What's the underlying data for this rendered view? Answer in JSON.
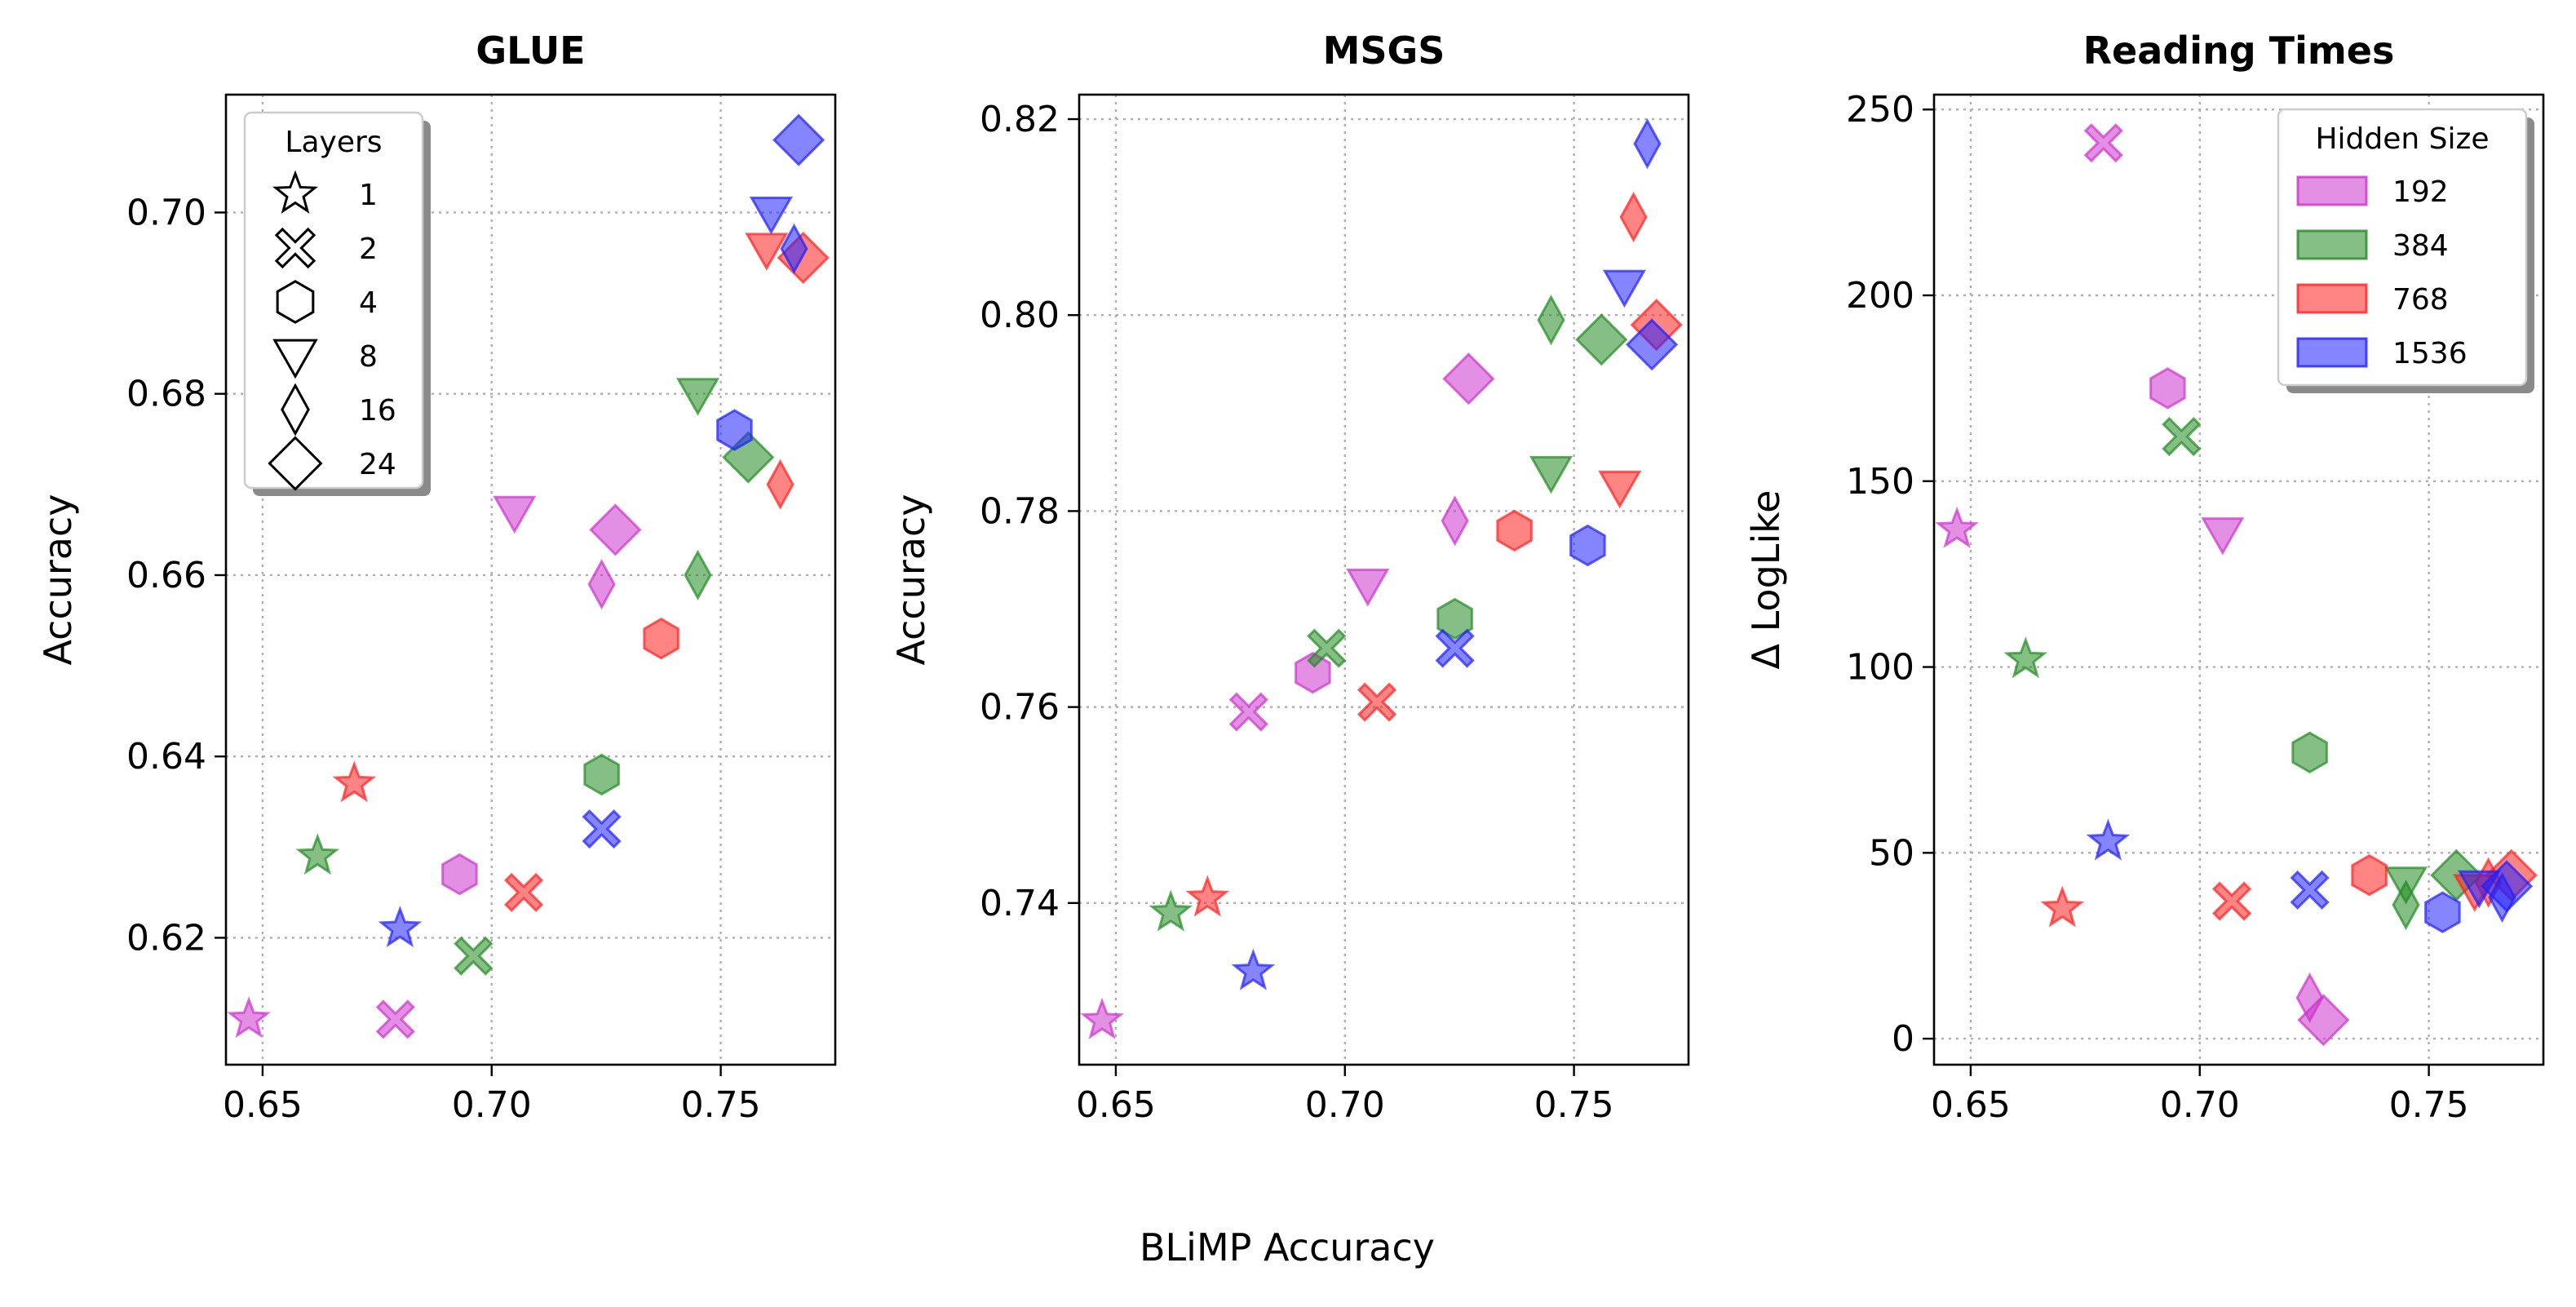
{
  "figure": {
    "shared_xlabel": "BLiMP Accuracy"
  },
  "legends": {
    "layers": {
      "title": "Layers",
      "entries": [
        {
          "label": "1",
          "marker": "star"
        },
        {
          "label": "2",
          "marker": "x"
        },
        {
          "label": "4",
          "marker": "hexagon"
        },
        {
          "label": "8",
          "marker": "triangle-down"
        },
        {
          "label": "16",
          "marker": "thin-diamond"
        },
        {
          "label": "24",
          "marker": "diamond"
        }
      ]
    },
    "hidden_size": {
      "title": "Hidden Size",
      "entries": [
        {
          "label": "192",
          "color": "#CC33CC"
        },
        {
          "label": "384",
          "color": "#228B22"
        },
        {
          "label": "768",
          "color": "#FF2020"
        },
        {
          "label": "1536",
          "color": "#2020FF"
        }
      ]
    }
  },
  "chart_data": [
    {
      "type": "scatter",
      "title": "GLUE",
      "xlabel": "",
      "ylabel": "Accuracy",
      "xlim": [
        0.642,
        0.775
      ],
      "ylim": [
        0.606,
        0.713
      ],
      "xticks": [
        "0.65",
        "0.70",
        "0.75"
      ],
      "yticks": [
        "0.62",
        "0.64",
        "0.66",
        "0.68",
        "0.70"
      ],
      "grid": true,
      "legend": "layers, top-left",
      "points": [
        {
          "x": 0.647,
          "y": 0.611,
          "layers": 1,
          "hidden": 192
        },
        {
          "x": 0.679,
          "y": 0.611,
          "layers": 2,
          "hidden": 192
        },
        {
          "x": 0.693,
          "y": 0.627,
          "layers": 4,
          "hidden": 192
        },
        {
          "x": 0.705,
          "y": 0.667,
          "layers": 8,
          "hidden": 192
        },
        {
          "x": 0.724,
          "y": 0.659,
          "layers": 16,
          "hidden": 192
        },
        {
          "x": 0.727,
          "y": 0.665,
          "layers": 24,
          "hidden": 192
        },
        {
          "x": 0.662,
          "y": 0.629,
          "layers": 1,
          "hidden": 384
        },
        {
          "x": 0.696,
          "y": 0.618,
          "layers": 2,
          "hidden": 384
        },
        {
          "x": 0.724,
          "y": 0.638,
          "layers": 4,
          "hidden": 384
        },
        {
          "x": 0.745,
          "y": 0.68,
          "layers": 8,
          "hidden": 384
        },
        {
          "x": 0.745,
          "y": 0.66,
          "layers": 16,
          "hidden": 384
        },
        {
          "x": 0.756,
          "y": 0.673,
          "layers": 24,
          "hidden": 384
        },
        {
          "x": 0.67,
          "y": 0.637,
          "layers": 1,
          "hidden": 768
        },
        {
          "x": 0.707,
          "y": 0.625,
          "layers": 2,
          "hidden": 768
        },
        {
          "x": 0.737,
          "y": 0.653,
          "layers": 4,
          "hidden": 768
        },
        {
          "x": 0.76,
          "y": 0.696,
          "layers": 8,
          "hidden": 768
        },
        {
          "x": 0.763,
          "y": 0.67,
          "layers": 16,
          "hidden": 768
        },
        {
          "x": 0.768,
          "y": 0.695,
          "layers": 24,
          "hidden": 768
        },
        {
          "x": 0.68,
          "y": 0.621,
          "layers": 1,
          "hidden": 1536
        },
        {
          "x": 0.724,
          "y": 0.632,
          "layers": 2,
          "hidden": 1536
        },
        {
          "x": 0.753,
          "y": 0.676,
          "layers": 4,
          "hidden": 1536
        },
        {
          "x": 0.761,
          "y": 0.7,
          "layers": 8,
          "hidden": 1536
        },
        {
          "x": 0.766,
          "y": 0.696,
          "layers": 16,
          "hidden": 1536
        },
        {
          "x": 0.767,
          "y": 0.708,
          "layers": 24,
          "hidden": 1536
        }
      ]
    },
    {
      "type": "scatter",
      "title": "MSGS",
      "xlabel": "",
      "ylabel": "Accuracy",
      "xlim": [
        0.642,
        0.775
      ],
      "ylim": [
        0.7235,
        0.8225
      ],
      "xticks": [
        "0.65",
        "0.70",
        "0.75"
      ],
      "yticks": [
        "0.74",
        "0.76",
        "0.78",
        "0.80",
        "0.82"
      ],
      "grid": true,
      "legend": "none",
      "points": [
        {
          "x": 0.647,
          "y": 0.728,
          "layers": 1,
          "hidden": 192
        },
        {
          "x": 0.679,
          "y": 0.7595,
          "layers": 2,
          "hidden": 192
        },
        {
          "x": 0.693,
          "y": 0.7635,
          "layers": 4,
          "hidden": 192
        },
        {
          "x": 0.705,
          "y": 0.7725,
          "layers": 8,
          "hidden": 192
        },
        {
          "x": 0.724,
          "y": 0.779,
          "layers": 16,
          "hidden": 192
        },
        {
          "x": 0.727,
          "y": 0.7935,
          "layers": 24,
          "hidden": 192
        },
        {
          "x": 0.662,
          "y": 0.739,
          "layers": 1,
          "hidden": 384
        },
        {
          "x": 0.696,
          "y": 0.766,
          "layers": 2,
          "hidden": 384
        },
        {
          "x": 0.724,
          "y": 0.769,
          "layers": 4,
          "hidden": 384
        },
        {
          "x": 0.745,
          "y": 0.784,
          "layers": 8,
          "hidden": 384
        },
        {
          "x": 0.745,
          "y": 0.7995,
          "layers": 16,
          "hidden": 384
        },
        {
          "x": 0.756,
          "y": 0.7975,
          "layers": 24,
          "hidden": 384
        },
        {
          "x": 0.67,
          "y": 0.7405,
          "layers": 1,
          "hidden": 768
        },
        {
          "x": 0.707,
          "y": 0.7605,
          "layers": 2,
          "hidden": 768
        },
        {
          "x": 0.737,
          "y": 0.778,
          "layers": 4,
          "hidden": 768
        },
        {
          "x": 0.76,
          "y": 0.7825,
          "layers": 8,
          "hidden": 768
        },
        {
          "x": 0.763,
          "y": 0.81,
          "layers": 16,
          "hidden": 768
        },
        {
          "x": 0.768,
          "y": 0.799,
          "layers": 24,
          "hidden": 768
        },
        {
          "x": 0.68,
          "y": 0.733,
          "layers": 1,
          "hidden": 1536
        },
        {
          "x": 0.724,
          "y": 0.766,
          "layers": 2,
          "hidden": 1536
        },
        {
          "x": 0.753,
          "y": 0.7765,
          "layers": 4,
          "hidden": 1536
        },
        {
          "x": 0.761,
          "y": 0.803,
          "layers": 8,
          "hidden": 1536
        },
        {
          "x": 0.766,
          "y": 0.8175,
          "layers": 16,
          "hidden": 1536
        },
        {
          "x": 0.767,
          "y": 0.797,
          "layers": 24,
          "hidden": 1536
        }
      ]
    },
    {
      "type": "scatter",
      "title": "Reading Times",
      "xlabel": "",
      "ylabel": "Δ LogLike",
      "xlim": [
        0.642,
        0.775
      ],
      "ylim": [
        -7,
        254
      ],
      "xticks": [
        "0.65",
        "0.70",
        "0.75"
      ],
      "yticks": [
        "0",
        "50",
        "100",
        "150",
        "200",
        "250"
      ],
      "grid": true,
      "legend": "hidden size, top-right",
      "points": [
        {
          "x": 0.647,
          "y": 137,
          "layers": 1,
          "hidden": 192
        },
        {
          "x": 0.679,
          "y": 241,
          "layers": 2,
          "hidden": 192
        },
        {
          "x": 0.693,
          "y": 175,
          "layers": 4,
          "hidden": 192
        },
        {
          "x": 0.705,
          "y": 136,
          "layers": 8,
          "hidden": 192
        },
        {
          "x": 0.724,
          "y": 11,
          "layers": 16,
          "hidden": 192
        },
        {
          "x": 0.727,
          "y": 5,
          "layers": 24,
          "hidden": 192
        },
        {
          "x": 0.662,
          "y": 102,
          "layers": 1,
          "hidden": 384
        },
        {
          "x": 0.696,
          "y": 162,
          "layers": 2,
          "hidden": 384
        },
        {
          "x": 0.724,
          "y": 77,
          "layers": 4,
          "hidden": 384
        },
        {
          "x": 0.745,
          "y": 42,
          "layers": 8,
          "hidden": 384
        },
        {
          "x": 0.745,
          "y": 36,
          "layers": 16,
          "hidden": 384
        },
        {
          "x": 0.756,
          "y": 44,
          "layers": 24,
          "hidden": 384
        },
        {
          "x": 0.67,
          "y": 35,
          "layers": 1,
          "hidden": 768
        },
        {
          "x": 0.707,
          "y": 37,
          "layers": 2,
          "hidden": 768
        },
        {
          "x": 0.737,
          "y": 44,
          "layers": 4,
          "hidden": 768
        },
        {
          "x": 0.76,
          "y": 40,
          "layers": 8,
          "hidden": 768
        },
        {
          "x": 0.763,
          "y": 42,
          "layers": 16,
          "hidden": 768
        },
        {
          "x": 0.768,
          "y": 44,
          "layers": 24,
          "hidden": 768
        },
        {
          "x": 0.68,
          "y": 53,
          "layers": 1,
          "hidden": 1536
        },
        {
          "x": 0.724,
          "y": 40,
          "layers": 2,
          "hidden": 1536
        },
        {
          "x": 0.753,
          "y": 34,
          "layers": 4,
          "hidden": 1536
        },
        {
          "x": 0.761,
          "y": 41,
          "layers": 8,
          "hidden": 1536
        },
        {
          "x": 0.766,
          "y": 38,
          "layers": 16,
          "hidden": 1536
        },
        {
          "x": 0.767,
          "y": 41,
          "layers": 24,
          "hidden": 1536
        }
      ]
    }
  ]
}
